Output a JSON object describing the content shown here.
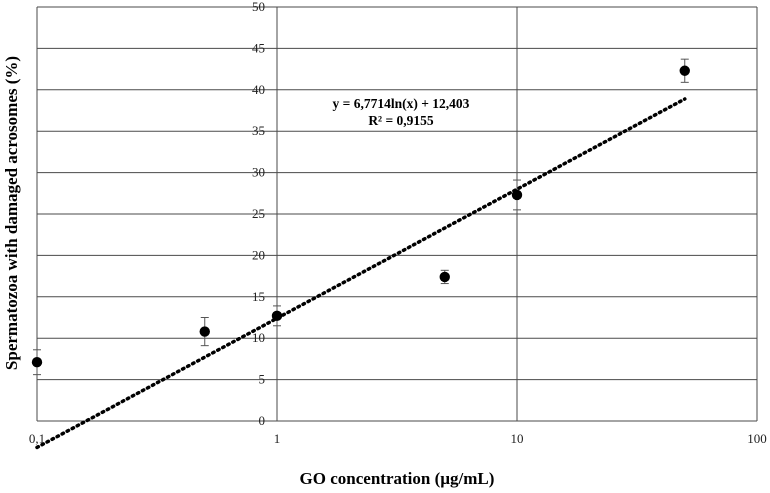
{
  "chart_data": {
    "type": "scatter",
    "xlabel": "GO concentration (µg/mL)",
    "ylabel": "Spermatozoa with damaged acrosomes (%)",
    "x_scale": "log",
    "xlim": [
      0.1,
      100
    ],
    "ylim": [
      0,
      50
    ],
    "x_ticks": [
      0.1,
      1,
      10,
      100
    ],
    "x_tick_labels": [
      "0,1",
      "1",
      "10",
      "100"
    ],
    "y_ticks": [
      0,
      5,
      10,
      15,
      20,
      25,
      30,
      35,
      40,
      45,
      50
    ],
    "y_tick_labels": [
      "0",
      "5",
      "10",
      "15",
      "20",
      "25",
      "30",
      "35",
      "40",
      "45",
      "50"
    ],
    "grid": true,
    "points": [
      {
        "x": 0.1,
        "y": 7.1,
        "err": 1.5
      },
      {
        "x": 0.5,
        "y": 10.8,
        "err": 1.7
      },
      {
        "x": 1,
        "y": 12.7,
        "err": 1.2
      },
      {
        "x": 5,
        "y": 17.4,
        "err": 0.8
      },
      {
        "x": 10,
        "y": 27.3,
        "err": 1.8
      },
      {
        "x": 50,
        "y": 42.3,
        "err": 1.4
      }
    ],
    "trendline": {
      "type": "logarithmic",
      "slope": 6.7714,
      "intercept": 12.403,
      "x_range": [
        0.1,
        50
      ],
      "equation_label": "y = 6,7714ln(x) + 12,403",
      "r2_label": "R² = 0,9155"
    },
    "colors": {
      "points": "#000000",
      "grid": "#4a4a4a",
      "trend": "#000000"
    }
  }
}
